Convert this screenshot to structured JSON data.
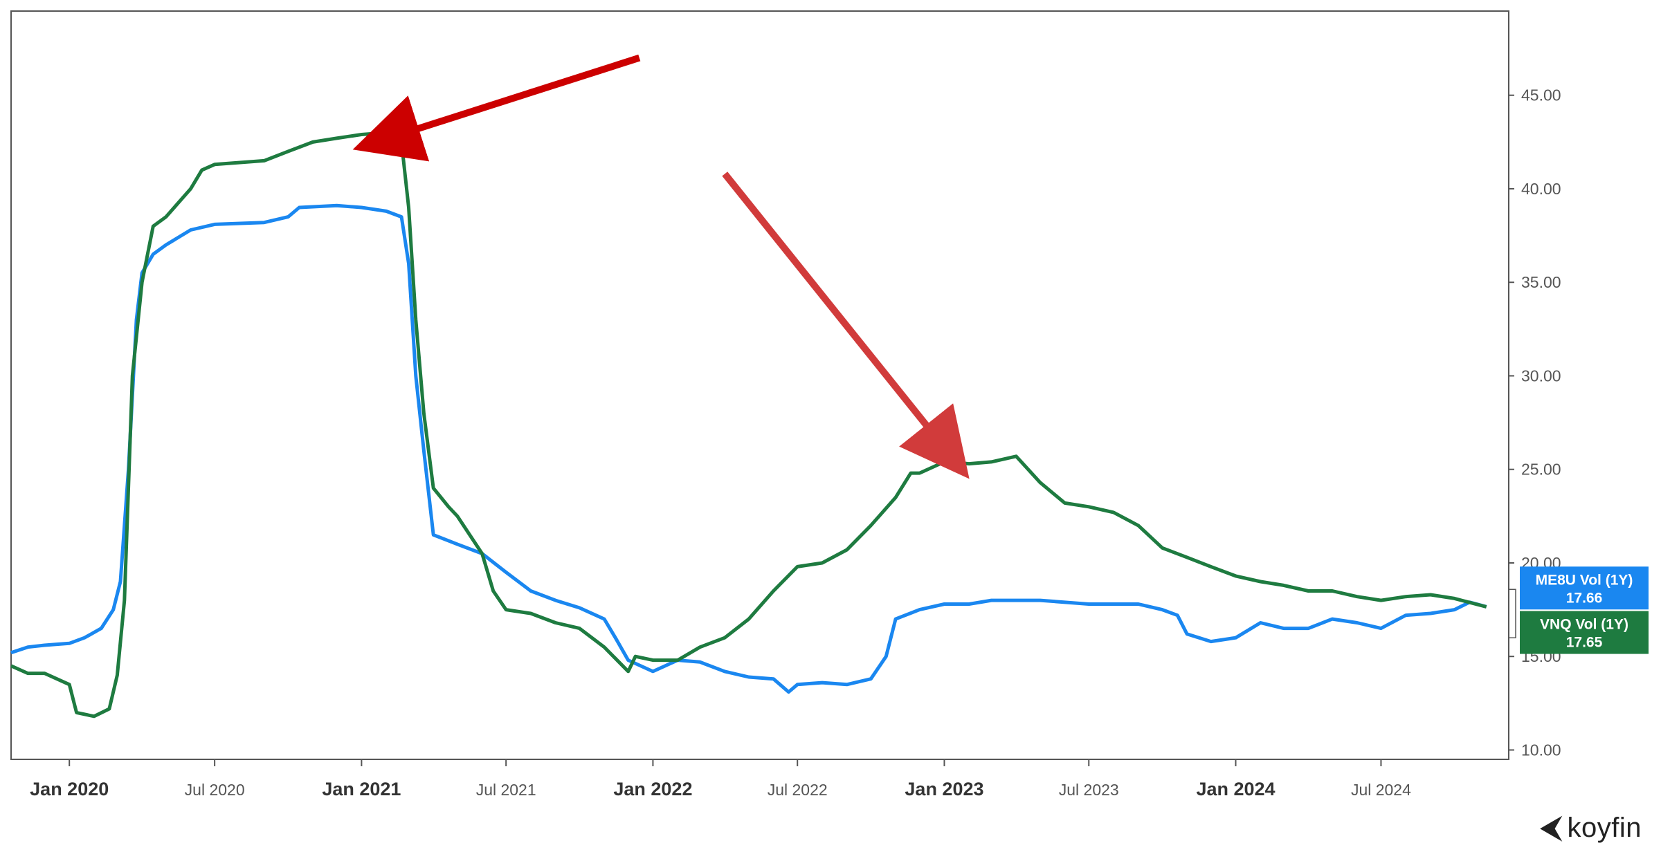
{
  "chart_data": {
    "type": "line",
    "x_ticks": [
      {
        "label": "Jan 2020",
        "date": "2020-01-01",
        "major": true
      },
      {
        "label": "Jul 2020",
        "date": "2020-07-01",
        "major": false
      },
      {
        "label": "Jan 2021",
        "date": "2021-01-01",
        "major": true
      },
      {
        "label": "Jul 2021",
        "date": "2021-07-01",
        "major": false
      },
      {
        "label": "Jan 2022",
        "date": "2022-01-01",
        "major": true
      },
      {
        "label": "Jul 2022",
        "date": "2022-07-01",
        "major": false
      },
      {
        "label": "Jan 2023",
        "date": "2023-01-01",
        "major": true
      },
      {
        "label": "Jul 2023",
        "date": "2023-07-01",
        "major": false
      },
      {
        "label": "Jan 2024",
        "date": "2024-01-01",
        "major": true
      },
      {
        "label": "Jul 2024",
        "date": "2024-07-01",
        "major": false
      }
    ],
    "y_ticks": [
      "10.00",
      "15.00",
      "20.00",
      "25.00",
      "30.00",
      "35.00",
      "40.00",
      "45.00"
    ],
    "ylim": [
      9.5,
      49.5
    ],
    "xlim": [
      "2019-10-20",
      "2024-12-08"
    ],
    "grid": false,
    "series": [
      {
        "name": "ME8U Vol (1Y)",
        "color": "#1a87f0",
        "last_value": "17.66",
        "points": [
          [
            "2019-10-20",
            15.2
          ],
          [
            "2019-11-10",
            15.5
          ],
          [
            "2019-12-01",
            15.6
          ],
          [
            "2020-01-01",
            15.7
          ],
          [
            "2020-01-20",
            16.0
          ],
          [
            "2020-02-10",
            16.5
          ],
          [
            "2020-02-25",
            17.5
          ],
          [
            "2020-03-05",
            19.0
          ],
          [
            "2020-03-15",
            25.0
          ],
          [
            "2020-03-25",
            33.0
          ],
          [
            "2020-04-01",
            35.5
          ],
          [
            "2020-04-15",
            36.5
          ],
          [
            "2020-05-01",
            37.0
          ],
          [
            "2020-06-01",
            37.8
          ],
          [
            "2020-07-01",
            38.1
          ],
          [
            "2020-09-01",
            38.2
          ],
          [
            "2020-10-01",
            38.5
          ],
          [
            "2020-10-15",
            39.0
          ],
          [
            "2020-12-01",
            39.1
          ],
          [
            "2021-01-01",
            39.0
          ],
          [
            "2021-02-01",
            38.8
          ],
          [
            "2021-02-20",
            38.5
          ],
          [
            "2021-03-01",
            36.0
          ],
          [
            "2021-03-10",
            30.0
          ],
          [
            "2021-03-20",
            26.0
          ],
          [
            "2021-04-01",
            21.5
          ],
          [
            "2021-05-01",
            21.0
          ],
          [
            "2021-06-01",
            20.5
          ],
          [
            "2021-07-01",
            19.5
          ],
          [
            "2021-08-01",
            18.5
          ],
          [
            "2021-09-01",
            18.0
          ],
          [
            "2021-10-01",
            17.6
          ],
          [
            "2021-11-01",
            17.0
          ],
          [
            "2021-11-15",
            16.0
          ],
          [
            "2021-12-01",
            14.8
          ],
          [
            "2022-01-01",
            14.2
          ],
          [
            "2022-02-01",
            14.8
          ],
          [
            "2022-03-01",
            14.7
          ],
          [
            "2022-04-01",
            14.2
          ],
          [
            "2022-05-01",
            13.9
          ],
          [
            "2022-06-01",
            13.8
          ],
          [
            "2022-06-20",
            13.1
          ],
          [
            "2022-07-01",
            13.5
          ],
          [
            "2022-08-01",
            13.6
          ],
          [
            "2022-09-01",
            13.5
          ],
          [
            "2022-10-01",
            13.8
          ],
          [
            "2022-10-20",
            15.0
          ],
          [
            "2022-11-01",
            17.0
          ],
          [
            "2022-12-01",
            17.5
          ],
          [
            "2023-01-01",
            17.8
          ],
          [
            "2023-02-01",
            17.8
          ],
          [
            "2023-03-01",
            18.0
          ],
          [
            "2023-05-01",
            18.0
          ],
          [
            "2023-07-01",
            17.8
          ],
          [
            "2023-09-01",
            17.8
          ],
          [
            "2023-10-01",
            17.5
          ],
          [
            "2023-10-20",
            17.2
          ],
          [
            "2023-11-01",
            16.2
          ],
          [
            "2023-12-01",
            15.8
          ],
          [
            "2024-01-01",
            16.0
          ],
          [
            "2024-02-01",
            16.8
          ],
          [
            "2024-03-01",
            16.5
          ],
          [
            "2024-04-01",
            16.5
          ],
          [
            "2024-05-01",
            17.0
          ],
          [
            "2024-06-01",
            16.8
          ],
          [
            "2024-07-01",
            16.5
          ],
          [
            "2024-08-01",
            17.2
          ],
          [
            "2024-09-01",
            17.3
          ],
          [
            "2024-10-01",
            17.5
          ],
          [
            "2024-10-20",
            17.9
          ],
          [
            "2024-11-10",
            17.66
          ]
        ]
      },
      {
        "name": "VNQ Vol (1Y)",
        "color": "#1e7b40",
        "last_value": "17.65",
        "points": [
          [
            "2019-10-20",
            14.5
          ],
          [
            "2019-11-10",
            14.1
          ],
          [
            "2019-12-01",
            14.1
          ],
          [
            "2020-01-01",
            13.5
          ],
          [
            "2020-01-10",
            12.0
          ],
          [
            "2020-02-01",
            11.8
          ],
          [
            "2020-02-20",
            12.2
          ],
          [
            "2020-03-01",
            14.0
          ],
          [
            "2020-03-10",
            18.0
          ],
          [
            "2020-03-20",
            30.0
          ],
          [
            "2020-04-01",
            35.0
          ],
          [
            "2020-04-15",
            38.0
          ],
          [
            "2020-05-01",
            38.5
          ],
          [
            "2020-06-01",
            40.0
          ],
          [
            "2020-06-15",
            41.0
          ],
          [
            "2020-07-01",
            41.3
          ],
          [
            "2020-09-01",
            41.5
          ],
          [
            "2020-10-01",
            42.0
          ],
          [
            "2020-11-01",
            42.5
          ],
          [
            "2020-12-01",
            42.7
          ],
          [
            "2021-01-01",
            42.9
          ],
          [
            "2021-02-01",
            43.0
          ],
          [
            "2021-02-20",
            42.5
          ],
          [
            "2021-03-01",
            39.0
          ],
          [
            "2021-03-10",
            33.0
          ],
          [
            "2021-03-20",
            28.0
          ],
          [
            "2021-04-01",
            24.0
          ],
          [
            "2021-04-20",
            23.0
          ],
          [
            "2021-05-01",
            22.5
          ],
          [
            "2021-06-01",
            20.5
          ],
          [
            "2021-06-15",
            18.5
          ],
          [
            "2021-07-01",
            17.5
          ],
          [
            "2021-08-01",
            17.3
          ],
          [
            "2021-09-01",
            16.8
          ],
          [
            "2021-10-01",
            16.5
          ],
          [
            "2021-11-01",
            15.5
          ],
          [
            "2021-12-01",
            14.2
          ],
          [
            "2021-12-10",
            15.0
          ],
          [
            "2022-01-01",
            14.8
          ],
          [
            "2022-02-01",
            14.8
          ],
          [
            "2022-03-01",
            15.5
          ],
          [
            "2022-04-01",
            16.0
          ],
          [
            "2022-05-01",
            17.0
          ],
          [
            "2022-06-01",
            18.5
          ],
          [
            "2022-07-01",
            19.8
          ],
          [
            "2022-08-01",
            20.0
          ],
          [
            "2022-09-01",
            20.7
          ],
          [
            "2022-10-01",
            22.0
          ],
          [
            "2022-11-01",
            23.5
          ],
          [
            "2022-11-20",
            24.8
          ],
          [
            "2022-12-01",
            24.8
          ],
          [
            "2023-01-01",
            25.4
          ],
          [
            "2023-02-01",
            25.3
          ],
          [
            "2023-03-01",
            25.4
          ],
          [
            "2023-04-01",
            25.7
          ],
          [
            "2023-05-01",
            24.3
          ],
          [
            "2023-06-01",
            23.2
          ],
          [
            "2023-07-01",
            23.0
          ],
          [
            "2023-08-01",
            22.7
          ],
          [
            "2023-09-01",
            22.0
          ],
          [
            "2023-10-01",
            20.8
          ],
          [
            "2023-11-01",
            20.3
          ],
          [
            "2023-12-01",
            19.8
          ],
          [
            "2024-01-01",
            19.3
          ],
          [
            "2024-02-01",
            19.0
          ],
          [
            "2024-03-01",
            18.8
          ],
          [
            "2024-04-01",
            18.5
          ],
          [
            "2024-05-01",
            18.5
          ],
          [
            "2024-06-01",
            18.2
          ],
          [
            "2024-07-01",
            18.0
          ],
          [
            "2024-08-01",
            18.2
          ],
          [
            "2024-09-01",
            18.3
          ],
          [
            "2024-10-01",
            18.1
          ],
          [
            "2024-11-10",
            17.65
          ]
        ]
      }
    ],
    "annotations": [
      {
        "type": "arrow",
        "color": "#cc0000",
        "from": [
          "2021-12-15",
          47.0
        ],
        "to": [
          "2021-02-25",
          43.0
        ]
      },
      {
        "type": "arrow",
        "color": "#d13b3b",
        "from": [
          "2022-04-01",
          40.8
        ],
        "to": [
          "2022-12-20",
          26.8
        ]
      }
    ]
  },
  "branding": {
    "logo_text": "koyfin",
    "logo_icon": "koyfin-mark-icon"
  }
}
